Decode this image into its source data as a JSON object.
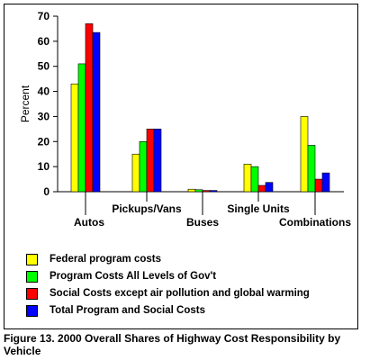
{
  "chart_data": {
    "type": "bar",
    "title": "",
    "xlabel": "",
    "ylabel": "Percent",
    "ylim": [
      0,
      70
    ],
    "yticks": [
      0,
      10,
      20,
      30,
      40,
      50,
      60,
      70
    ],
    "grid": false,
    "legend_position": "bottom",
    "categories": [
      "Autos",
      "Pickups/Vans",
      "Buses",
      "Single Units",
      "Combinations"
    ],
    "series": [
      {
        "name": "Federal program costs",
        "color": "#ffff00",
        "values": [
          43,
          15,
          1,
          11,
          30
        ]
      },
      {
        "name": "Program Costs All Levels of Gov't",
        "color": "#00ff00",
        "values": [
          51,
          20,
          0.8,
          10,
          18.5
        ]
      },
      {
        "name": "Social Costs except air pollution and global warming",
        "color": "#ff0000",
        "values": [
          67,
          25,
          0.5,
          2.5,
          5
        ]
      },
      {
        "name": "Total Program and Social Costs",
        "color": "#0000ff",
        "values": [
          63.5,
          25,
          0.5,
          3.7,
          7.5
        ]
      }
    ]
  },
  "caption": "Figure 13. 2000 Overall Shares of Highway Cost Responsibility by Vehicle"
}
